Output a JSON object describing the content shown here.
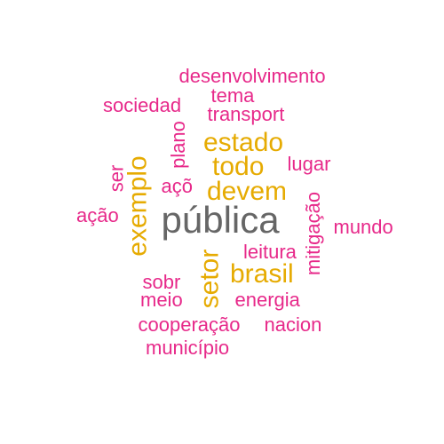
{
  "colors": {
    "magenta": "#e7298a",
    "gold": "#e6ab02",
    "gray": "#666666"
  },
  "words": [
    {
      "id": "desenvolvimento",
      "text": "desenvolvimento",
      "color": "magenta",
      "tier": "small"
    },
    {
      "id": "tema",
      "text": "tema",
      "color": "magenta",
      "tier": "small"
    },
    {
      "id": "sociedad",
      "text": "sociedad",
      "color": "magenta",
      "tier": "small"
    },
    {
      "id": "transport",
      "text": "transport",
      "color": "magenta",
      "tier": "small"
    },
    {
      "id": "plano",
      "text": "plano",
      "color": "magenta",
      "tier": "small",
      "vertical": true
    },
    {
      "id": "estado",
      "text": "estado",
      "color": "gold",
      "tier": "medium"
    },
    {
      "id": "todo",
      "text": "todo",
      "color": "gold",
      "tier": "medium"
    },
    {
      "id": "lugar",
      "text": "lugar",
      "color": "magenta",
      "tier": "small"
    },
    {
      "id": "ser",
      "text": "ser",
      "color": "magenta",
      "tier": "small",
      "vertical": true
    },
    {
      "id": "exemplo",
      "text": "exemplo",
      "color": "gold",
      "tier": "medium",
      "vertical": true
    },
    {
      "id": "aco",
      "text": "açõ",
      "color": "magenta",
      "tier": "small"
    },
    {
      "id": "devem",
      "text": "devem",
      "color": "gold",
      "tier": "medium"
    },
    {
      "id": "acao",
      "text": "ação",
      "color": "magenta",
      "tier": "small"
    },
    {
      "id": "publica",
      "text": "pública",
      "color": "gray",
      "tier": "large"
    },
    {
      "id": "mitigacao",
      "text": "mitigação",
      "color": "magenta",
      "tier": "small",
      "vertical": true
    },
    {
      "id": "mundo",
      "text": "mundo",
      "color": "magenta",
      "tier": "small"
    },
    {
      "id": "leitura",
      "text": "leitura",
      "color": "magenta",
      "tier": "small"
    },
    {
      "id": "setor",
      "text": "setor",
      "color": "gold",
      "tier": "medium",
      "vertical": true
    },
    {
      "id": "brasil",
      "text": "brasil",
      "color": "gold",
      "tier": "medium"
    },
    {
      "id": "sobr",
      "text": "sobr",
      "color": "magenta",
      "tier": "small"
    },
    {
      "id": "meio",
      "text": "meio",
      "color": "magenta",
      "tier": "small"
    },
    {
      "id": "energia",
      "text": "energia",
      "color": "magenta",
      "tier": "small"
    },
    {
      "id": "cooperacao",
      "text": "cooperação",
      "color": "magenta",
      "tier": "small"
    },
    {
      "id": "nacion",
      "text": "nacion",
      "color": "magenta",
      "tier": "small"
    },
    {
      "id": "municipio",
      "text": "município",
      "color": "magenta",
      "tier": "small"
    }
  ]
}
